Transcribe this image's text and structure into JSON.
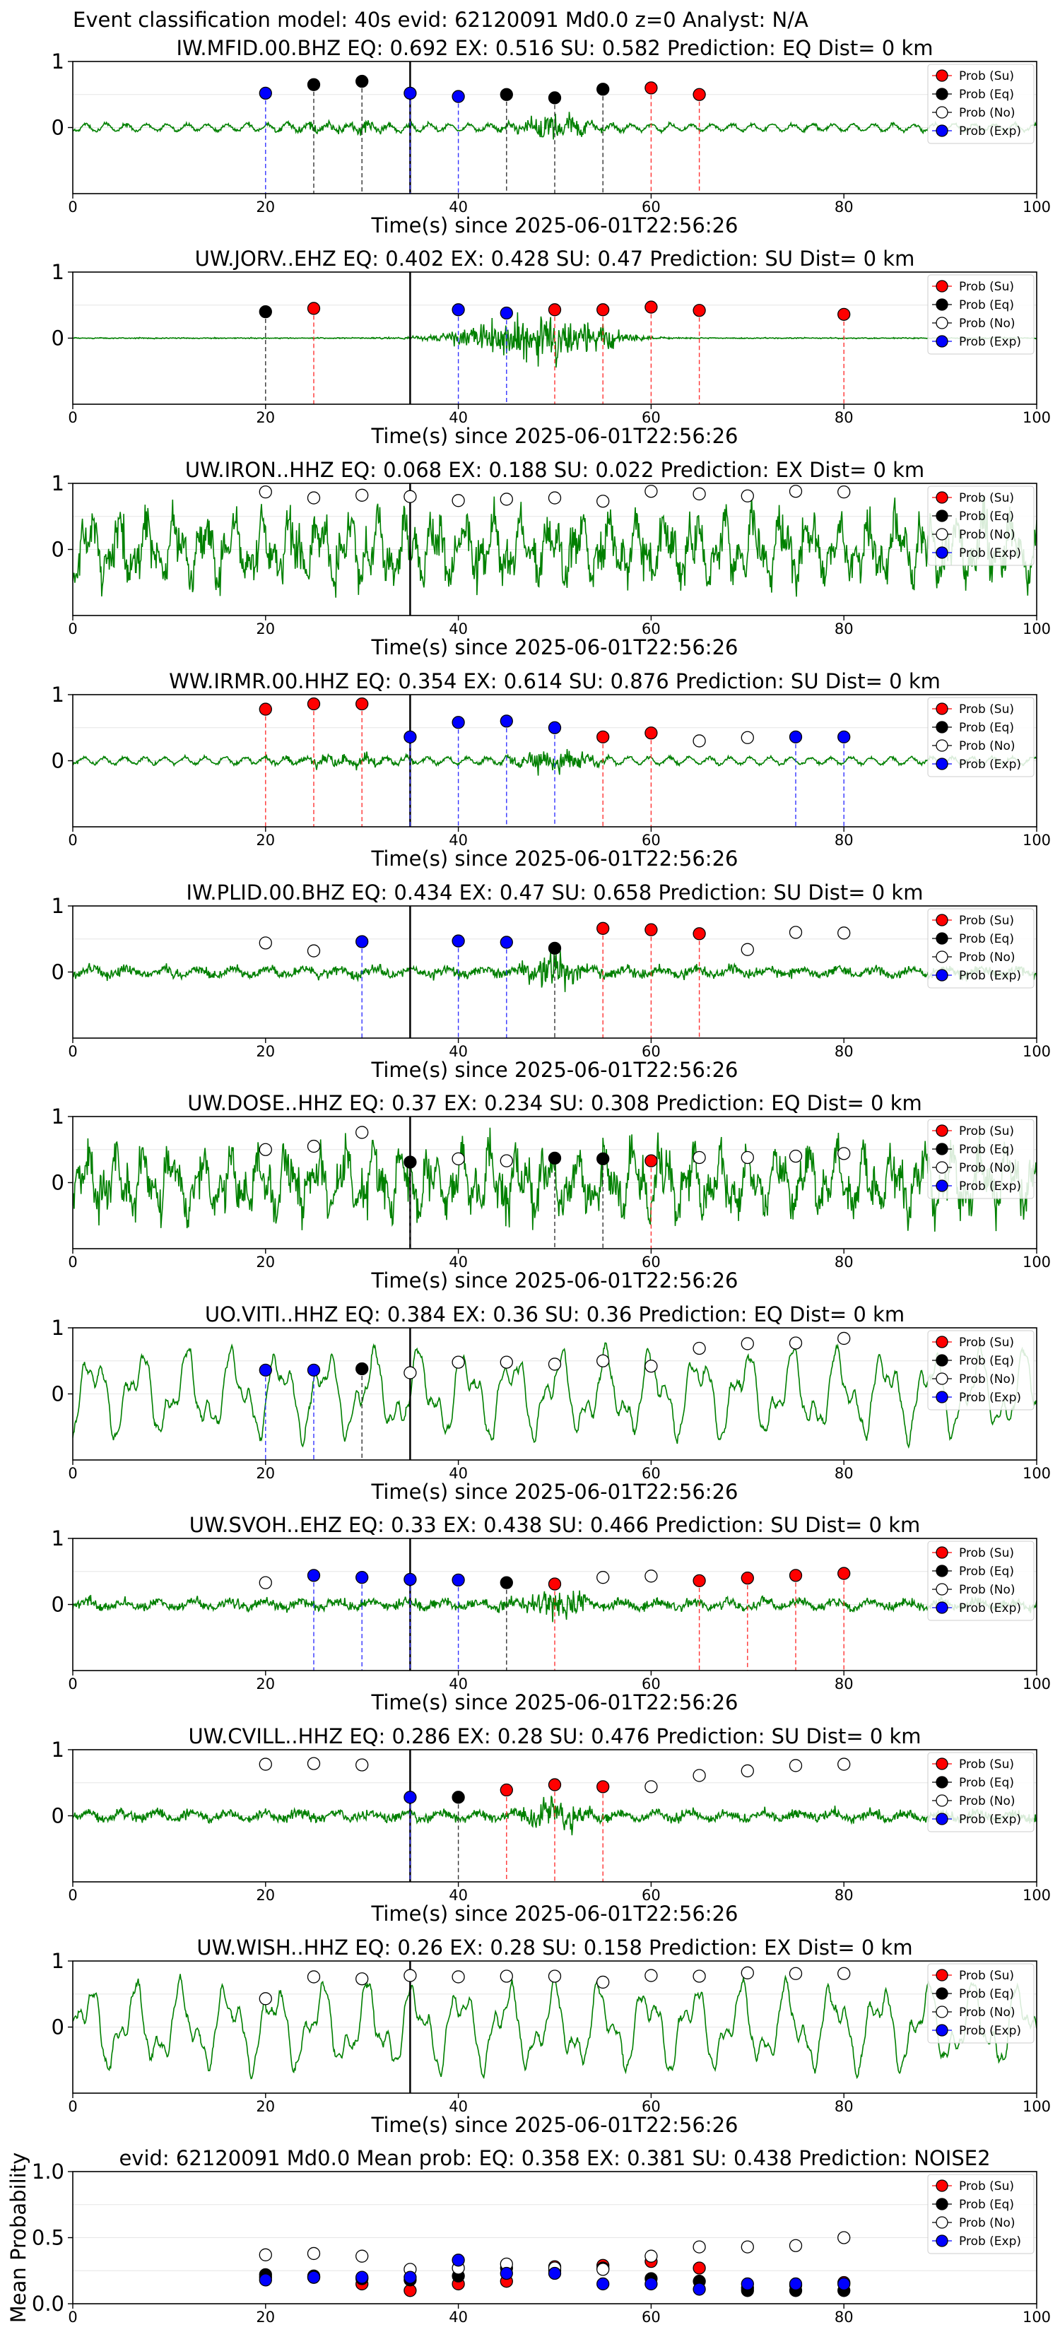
{
  "figure_title": "Event classification model: 40s evid: 62120091 Md0.0 z=0 Analyst: N/A",
  "chart_data": [
    {
      "type": "line",
      "title": "IW.MFID.00.BHZ   EQ: 0.692  EX: 0.516  SU: 0.582   Prediction: EQ    Dist= 0 km",
      "xlabel": "Time(s) since 2025-06-01T22:56:26",
      "xlim": [
        0,
        100
      ],
      "ylim": [
        -1,
        1
      ],
      "xticks": [
        0,
        20,
        40,
        60,
        80,
        100
      ],
      "yticks": [
        0,
        1
      ],
      "style": "mod",
      "points": [
        {
          "x": 20,
          "y": 0.52,
          "cls": "exp"
        },
        {
          "x": 25,
          "y": 0.65,
          "cls": "eq"
        },
        {
          "x": 30,
          "y": 0.7,
          "cls": "eq"
        },
        {
          "x": 35,
          "y": 0.52,
          "cls": "exp"
        },
        {
          "x": 40,
          "y": 0.47,
          "cls": "exp"
        },
        {
          "x": 45,
          "y": 0.5,
          "cls": "eq"
        },
        {
          "x": 50,
          "y": 0.45,
          "cls": "eq"
        },
        {
          "x": 55,
          "y": 0.58,
          "cls": "eq"
        },
        {
          "x": 60,
          "y": 0.6,
          "cls": "su"
        },
        {
          "x": 65,
          "y": 0.5,
          "cls": "su"
        }
      ]
    },
    {
      "type": "line",
      "title": "UW.JORV..EHZ   EQ: 0.402  EX: 0.428  SU: 0.47   Prediction: SU    Dist= 0 km",
      "xlabel": "Time(s) since 2025-06-01T22:56:26",
      "xlim": [
        0,
        100
      ],
      "ylim": [
        -1,
        1
      ],
      "xticks": [
        0,
        20,
        40,
        60,
        80,
        100
      ],
      "yticks": [
        0,
        1
      ],
      "style": "burst",
      "points": [
        {
          "x": 20,
          "y": 0.4,
          "cls": "eq"
        },
        {
          "x": 25,
          "y": 0.45,
          "cls": "su"
        },
        {
          "x": 40,
          "y": 0.43,
          "cls": "exp"
        },
        {
          "x": 45,
          "y": 0.38,
          "cls": "exp"
        },
        {
          "x": 50,
          "y": 0.43,
          "cls": "su"
        },
        {
          "x": 55,
          "y": 0.43,
          "cls": "su"
        },
        {
          "x": 60,
          "y": 0.47,
          "cls": "su"
        },
        {
          "x": 65,
          "y": 0.42,
          "cls": "su"
        },
        {
          "x": 80,
          "y": 0.36,
          "cls": "su"
        }
      ]
    },
    {
      "type": "line",
      "title": "UW.IRON..HHZ   EQ: 0.068  EX: 0.188  SU: 0.022   Prediction: EX    Dist= 0 km",
      "xlabel": "Time(s) since 2025-06-01T22:56:26",
      "xlim": [
        0,
        100
      ],
      "ylim": [
        -1,
        1
      ],
      "xticks": [
        0,
        20,
        40,
        60,
        80,
        100
      ],
      "yticks": [
        0,
        1
      ],
      "style": "noisy",
      "points": [
        {
          "x": 20,
          "y": 0.87,
          "cls": "no"
        },
        {
          "x": 25,
          "y": 0.78,
          "cls": "no"
        },
        {
          "x": 30,
          "y": 0.82,
          "cls": "no"
        },
        {
          "x": 35,
          "y": 0.8,
          "cls": "no"
        },
        {
          "x": 40,
          "y": 0.74,
          "cls": "no"
        },
        {
          "x": 45,
          "y": 0.76,
          "cls": "no"
        },
        {
          "x": 50,
          "y": 0.78,
          "cls": "no"
        },
        {
          "x": 55,
          "y": 0.73,
          "cls": "no"
        },
        {
          "x": 60,
          "y": 0.88,
          "cls": "no"
        },
        {
          "x": 65,
          "y": 0.84,
          "cls": "no"
        },
        {
          "x": 70,
          "y": 0.81,
          "cls": "no"
        },
        {
          "x": 75,
          "y": 0.88,
          "cls": "no"
        },
        {
          "x": 80,
          "y": 0.87,
          "cls": "no"
        }
      ]
    },
    {
      "type": "line",
      "title": "WW.IRMR.00.HHZ   EQ: 0.354  EX: 0.614  SU: 0.876   Prediction: SU    Dist= 0 km",
      "xlabel": "Time(s) since 2025-06-01T22:56:26",
      "xlim": [
        0,
        100
      ],
      "ylim": [
        -1,
        1
      ],
      "xticks": [
        0,
        20,
        40,
        60,
        80,
        100
      ],
      "yticks": [
        0,
        1
      ],
      "style": "mod",
      "points": [
        {
          "x": 20,
          "y": 0.78,
          "cls": "su"
        },
        {
          "x": 25,
          "y": 0.86,
          "cls": "su"
        },
        {
          "x": 30,
          "y": 0.86,
          "cls": "su"
        },
        {
          "x": 35,
          "y": 0.36,
          "cls": "exp"
        },
        {
          "x": 40,
          "y": 0.58,
          "cls": "exp"
        },
        {
          "x": 45,
          "y": 0.6,
          "cls": "exp"
        },
        {
          "x": 50,
          "y": 0.5,
          "cls": "exp"
        },
        {
          "x": 55,
          "y": 0.36,
          "cls": "su"
        },
        {
          "x": 60,
          "y": 0.42,
          "cls": "su"
        },
        {
          "x": 65,
          "y": 0.3,
          "cls": "no"
        },
        {
          "x": 70,
          "y": 0.35,
          "cls": "no"
        },
        {
          "x": 75,
          "y": 0.36,
          "cls": "exp"
        },
        {
          "x": 80,
          "y": 0.36,
          "cls": "exp"
        }
      ]
    },
    {
      "type": "line",
      "title": "IW.PLID.00.BHZ   EQ: 0.434  EX: 0.47  SU: 0.658   Prediction: SU    Dist= 0 km",
      "xlabel": "Time(s) since 2025-06-01T22:56:26",
      "xlim": [
        0,
        100
      ],
      "ylim": [
        -1,
        1
      ],
      "xticks": [
        0,
        20,
        40,
        60,
        80,
        100
      ],
      "yticks": [
        0,
        1
      ],
      "style": "low",
      "points": [
        {
          "x": 20,
          "y": 0.44,
          "cls": "no"
        },
        {
          "x": 25,
          "y": 0.32,
          "cls": "no"
        },
        {
          "x": 30,
          "y": 0.46,
          "cls": "exp"
        },
        {
          "x": 40,
          "y": 0.47,
          "cls": "exp"
        },
        {
          "x": 45,
          "y": 0.45,
          "cls": "exp"
        },
        {
          "x": 50,
          "y": 0.36,
          "cls": "eq"
        },
        {
          "x": 55,
          "y": 0.66,
          "cls": "su"
        },
        {
          "x": 60,
          "y": 0.64,
          "cls": "su"
        },
        {
          "x": 65,
          "y": 0.58,
          "cls": "su"
        },
        {
          "x": 70,
          "y": 0.34,
          "cls": "no"
        },
        {
          "x": 75,
          "y": 0.6,
          "cls": "no"
        },
        {
          "x": 80,
          "y": 0.59,
          "cls": "no"
        }
      ]
    },
    {
      "type": "line",
      "title": "UW.DOSE..HHZ   EQ: 0.37  EX: 0.234  SU: 0.308   Prediction: EQ    Dist= 0 km",
      "xlabel": "Time(s) since 2025-06-01T22:56:26",
      "xlim": [
        0,
        100
      ],
      "ylim": [
        -1,
        1
      ],
      "xticks": [
        0,
        20,
        40,
        60,
        80,
        100
      ],
      "yticks": [
        0,
        1
      ],
      "style": "noisy",
      "points": [
        {
          "x": 20,
          "y": 0.5,
          "cls": "no"
        },
        {
          "x": 25,
          "y": 0.55,
          "cls": "no"
        },
        {
          "x": 30,
          "y": 0.76,
          "cls": "no"
        },
        {
          "x": 35,
          "y": 0.31,
          "cls": "eq"
        },
        {
          "x": 40,
          "y": 0.36,
          "cls": "no"
        },
        {
          "x": 45,
          "y": 0.33,
          "cls": "no"
        },
        {
          "x": 50,
          "y": 0.37,
          "cls": "eq"
        },
        {
          "x": 55,
          "y": 0.36,
          "cls": "eq"
        },
        {
          "x": 60,
          "y": 0.33,
          "cls": "su"
        },
        {
          "x": 65,
          "y": 0.38,
          "cls": "no"
        },
        {
          "x": 70,
          "y": 0.38,
          "cls": "no"
        },
        {
          "x": 75,
          "y": 0.4,
          "cls": "no"
        },
        {
          "x": 80,
          "y": 0.44,
          "cls": "no"
        }
      ]
    },
    {
      "type": "line",
      "title": "UO.VITI..HHZ   EQ: 0.384  EX: 0.36  SU: 0.36   Prediction: EQ    Dist= 0 km",
      "xlabel": "Time(s) since 2025-06-01T22:56:26",
      "xlim": [
        0,
        100
      ],
      "ylim": [
        -1,
        1
      ],
      "xticks": [
        0,
        20,
        40,
        60,
        80,
        100
      ],
      "yticks": [
        0,
        1
      ],
      "style": "wave",
      "points": [
        {
          "x": 20,
          "y": 0.36,
          "cls": "exp"
        },
        {
          "x": 25,
          "y": 0.36,
          "cls": "exp"
        },
        {
          "x": 30,
          "y": 0.38,
          "cls": "eq"
        },
        {
          "x": 35,
          "y": 0.32,
          "cls": "no"
        },
        {
          "x": 40,
          "y": 0.48,
          "cls": "no"
        },
        {
          "x": 45,
          "y": 0.48,
          "cls": "no"
        },
        {
          "x": 50,
          "y": 0.45,
          "cls": "no"
        },
        {
          "x": 55,
          "y": 0.5,
          "cls": "no"
        },
        {
          "x": 60,
          "y": 0.42,
          "cls": "no"
        },
        {
          "x": 65,
          "y": 0.69,
          "cls": "no"
        },
        {
          "x": 70,
          "y": 0.76,
          "cls": "no"
        },
        {
          "x": 75,
          "y": 0.77,
          "cls": "no"
        },
        {
          "x": 80,
          "y": 0.84,
          "cls": "no"
        }
      ]
    },
    {
      "type": "line",
      "title": "UW.SVOH..EHZ   EQ: 0.33  EX: 0.438  SU: 0.466   Prediction: SU    Dist= 0 km",
      "xlabel": "Time(s) since 2025-06-01T22:56:26",
      "xlim": [
        0,
        100
      ],
      "ylim": [
        -1,
        1
      ],
      "xticks": [
        0,
        20,
        40,
        60,
        80,
        100
      ],
      "yticks": [
        0,
        1
      ],
      "style": "low",
      "points": [
        {
          "x": 20,
          "y": 0.33,
          "cls": "no"
        },
        {
          "x": 25,
          "y": 0.44,
          "cls": "exp"
        },
        {
          "x": 30,
          "y": 0.41,
          "cls": "exp"
        },
        {
          "x": 35,
          "y": 0.38,
          "cls": "exp"
        },
        {
          "x": 40,
          "y": 0.37,
          "cls": "exp"
        },
        {
          "x": 45,
          "y": 0.33,
          "cls": "eq"
        },
        {
          "x": 50,
          "y": 0.31,
          "cls": "su"
        },
        {
          "x": 55,
          "y": 0.41,
          "cls": "no"
        },
        {
          "x": 60,
          "y": 0.43,
          "cls": "no"
        },
        {
          "x": 65,
          "y": 0.36,
          "cls": "su"
        },
        {
          "x": 70,
          "y": 0.4,
          "cls": "su"
        },
        {
          "x": 75,
          "y": 0.44,
          "cls": "su"
        },
        {
          "x": 80,
          "y": 0.47,
          "cls": "su"
        }
      ]
    },
    {
      "type": "line",
      "title": "UW.CVILL..HHZ   EQ: 0.286  EX: 0.28  SU: 0.476   Prediction: SU    Dist= 0 km",
      "xlabel": "Time(s) since 2025-06-01T22:56:26",
      "xlim": [
        0,
        100
      ],
      "ylim": [
        -1,
        1
      ],
      "xticks": [
        0,
        20,
        40,
        60,
        80,
        100
      ],
      "yticks": [
        0,
        1
      ],
      "style": "low",
      "points": [
        {
          "x": 20,
          "y": 0.78,
          "cls": "no"
        },
        {
          "x": 25,
          "y": 0.79,
          "cls": "no"
        },
        {
          "x": 30,
          "y": 0.77,
          "cls": "no"
        },
        {
          "x": 35,
          "y": 0.28,
          "cls": "exp"
        },
        {
          "x": 40,
          "y": 0.28,
          "cls": "eq"
        },
        {
          "x": 45,
          "y": 0.39,
          "cls": "su"
        },
        {
          "x": 50,
          "y": 0.47,
          "cls": "su"
        },
        {
          "x": 55,
          "y": 0.44,
          "cls": "su"
        },
        {
          "x": 60,
          "y": 0.44,
          "cls": "no"
        },
        {
          "x": 65,
          "y": 0.61,
          "cls": "no"
        },
        {
          "x": 70,
          "y": 0.68,
          "cls": "no"
        },
        {
          "x": 75,
          "y": 0.76,
          "cls": "no"
        },
        {
          "x": 80,
          "y": 0.78,
          "cls": "no"
        }
      ]
    },
    {
      "type": "line",
      "title": "UW.WISH..HHZ   EQ: 0.26  EX: 0.28  SU: 0.158   Prediction: EX    Dist= 0 km",
      "xlabel": "Time(s) since 2025-06-01T22:56:26",
      "xlim": [
        0,
        100
      ],
      "ylim": [
        -1,
        1
      ],
      "xticks": [
        0,
        20,
        40,
        60,
        80,
        100
      ],
      "yticks": [
        0,
        1
      ],
      "style": "wave",
      "points": [
        {
          "x": 20,
          "y": 0.43,
          "cls": "no"
        },
        {
          "x": 25,
          "y": 0.76,
          "cls": "no"
        },
        {
          "x": 30,
          "y": 0.73,
          "cls": "no"
        },
        {
          "x": 35,
          "y": 0.78,
          "cls": "no"
        },
        {
          "x": 40,
          "y": 0.76,
          "cls": "no"
        },
        {
          "x": 45,
          "y": 0.77,
          "cls": "no"
        },
        {
          "x": 50,
          "y": 0.77,
          "cls": "no"
        },
        {
          "x": 55,
          "y": 0.68,
          "cls": "no"
        },
        {
          "x": 60,
          "y": 0.78,
          "cls": "no"
        },
        {
          "x": 65,
          "y": 0.77,
          "cls": "no"
        },
        {
          "x": 70,
          "y": 0.82,
          "cls": "no"
        },
        {
          "x": 75,
          "y": 0.81,
          "cls": "no"
        },
        {
          "x": 80,
          "y": 0.81,
          "cls": "no"
        }
      ]
    },
    {
      "type": "scatter",
      "title": "evid: 62120091  Md0.0   Mean prob:   EQ: 0.358  EX: 0.381  SU: 0.438   Prediction: NOISE2",
      "xlabel": "",
      "ylabel": "Mean Probability",
      "xlim": [
        0,
        100
      ],
      "ylim": [
        0,
        1
      ],
      "xticks": [
        0,
        20,
        40,
        60,
        80,
        100
      ],
      "yticks": [
        0.0,
        0.5,
        1.0
      ],
      "ytick_labels": [
        "0.0",
        "0.5",
        "1.0"
      ],
      "x": [
        20,
        25,
        30,
        35,
        40,
        45,
        50,
        55,
        60,
        65,
        70,
        75,
        80
      ],
      "series": [
        {
          "name": "Prob (Su)",
          "values": [
            0.2,
            0.2,
            0.15,
            0.1,
            0.15,
            0.17,
            0.28,
            0.29,
            0.32,
            0.27,
            0.12,
            0.14,
            0.16
          ]
        },
        {
          "name": "Prob (Eq)",
          "values": [
            0.22,
            0.21,
            0.19,
            0.18,
            0.21,
            0.27,
            0.25,
            0.27,
            0.19,
            0.17,
            0.1,
            0.1,
            0.1
          ]
        },
        {
          "name": "Prob (No)",
          "values": [
            0.37,
            0.38,
            0.36,
            0.26,
            0.27,
            0.3,
            0.27,
            0.26,
            0.36,
            0.43,
            0.43,
            0.44,
            0.5
          ]
        },
        {
          "name": "Prob (Exp)",
          "values": [
            0.18,
            0.2,
            0.2,
            0.2,
            0.33,
            0.23,
            0.23,
            0.15,
            0.15,
            0.11,
            0.15,
            0.15,
            0.15
          ]
        }
      ]
    }
  ],
  "legend": {
    "entries": [
      {
        "key": "su",
        "label": "Prob (Su)"
      },
      {
        "key": "eq",
        "label": "Prob (Eq)"
      },
      {
        "key": "no",
        "label": "Prob (No)"
      },
      {
        "key": "exp",
        "label": "Prob (Exp)"
      }
    ],
    "placement": "top-right"
  },
  "colors": {
    "su": "#ff0000",
    "eq": "#000000",
    "no": "#ffffff",
    "exp": "#0000ff",
    "waveform": "#008000",
    "su_line": "#ff3333",
    "eq_line": "#333333",
    "exp_line": "#3333ff",
    "onset_line": "#000000",
    "grid": "#e6e6e6"
  },
  "onset_time": 35
}
